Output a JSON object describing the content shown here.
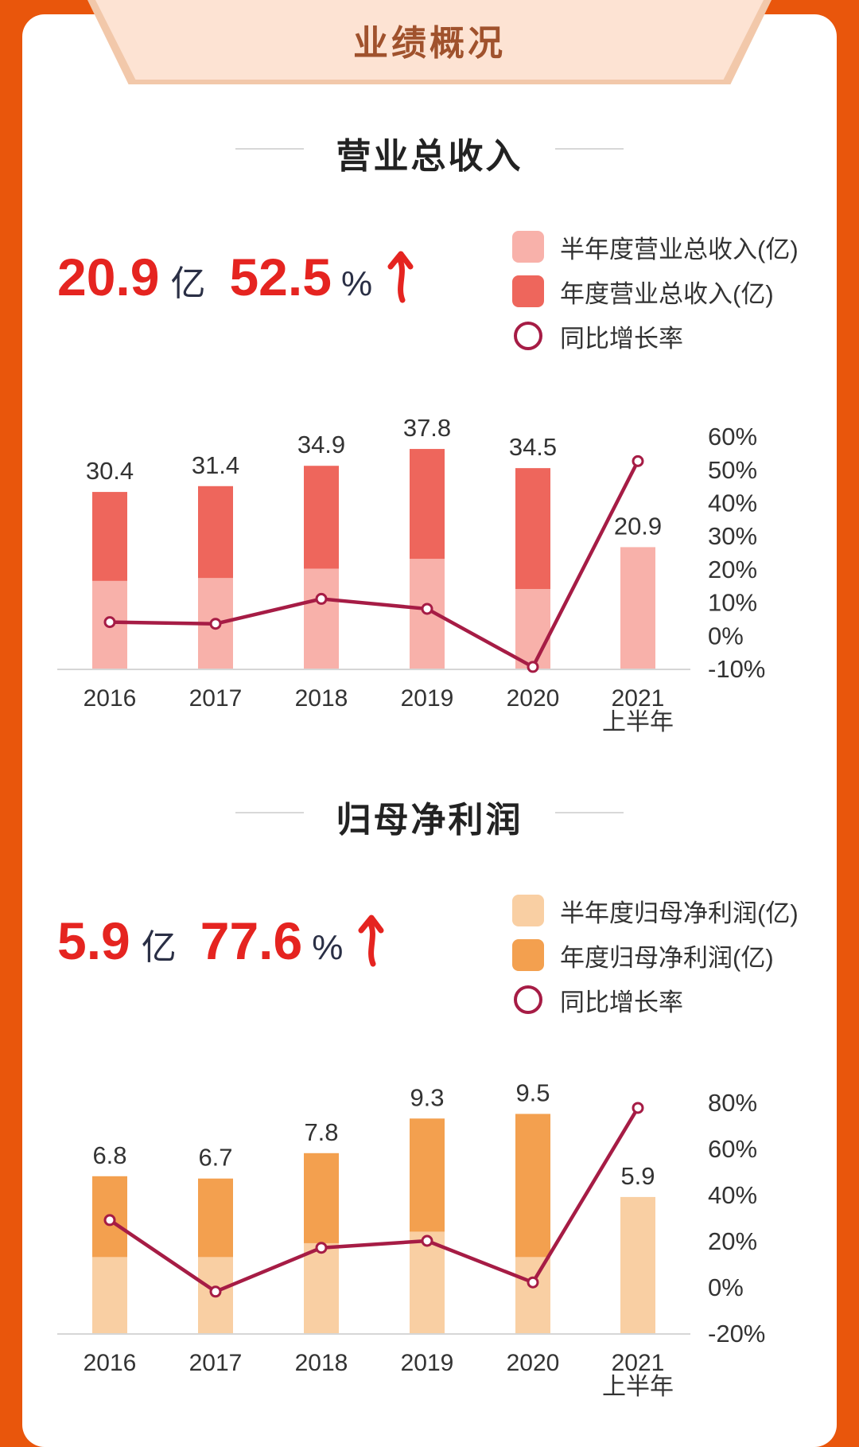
{
  "header": {
    "tab_title": "业绩概况"
  },
  "sections": [
    {
      "title": "营业总收入",
      "kpi": {
        "value": "20.9",
        "unit": "亿",
        "growth": "52.5",
        "growth_unit": "%"
      },
      "legend": {
        "half": "半年度营业总收入(亿)",
        "annual": "年度营业总收入(亿)",
        "yoy": "同比增长率"
      },
      "colors": {
        "half": "#f8b1aa",
        "annual": "#ee665c",
        "line": "#a61c45"
      }
    },
    {
      "title": "归母净利润",
      "kpi": {
        "value": "5.9",
        "unit": "亿",
        "growth": "77.6",
        "growth_unit": "%"
      },
      "legend": {
        "half": "半年度归母净利润(亿)",
        "annual": "年度归母净利润(亿)",
        "yoy": "同比增长率"
      },
      "colors": {
        "half": "#f9cfa3",
        "annual": "#f3a04f",
        "line": "#a61c45"
      }
    }
  ],
  "chart_data": [
    {
      "type": "bar",
      "categories": [
        "2016",
        "2017",
        "2018",
        "2019",
        "2020",
        "2021\n上半年"
      ],
      "series": [
        {
          "name": "半年度营业总收入(亿)",
          "values": [
            15.1,
            15.6,
            17.2,
            18.9,
            13.7,
            20.9
          ]
        },
        {
          "name": "年度营业总收入(亿)",
          "values": [
            30.4,
            31.4,
            34.9,
            37.8,
            34.5,
            null
          ]
        },
        {
          "name": "同比增长率",
          "values": [
            4,
            3.5,
            11,
            8,
            -9.5,
            52.5
          ],
          "axis": "right",
          "type": "line"
        }
      ],
      "bar_labels": [
        "30.4",
        "31.4",
        "34.9",
        "37.8",
        "34.5",
        "20.9"
      ],
      "ylim": [
        0,
        38
      ],
      "y2lim": [
        -10,
        60
      ],
      "y2ticks": [
        "60%",
        "50%",
        "40%",
        "30%",
        "20%",
        "10%",
        "0%",
        "-10%"
      ]
    },
    {
      "type": "bar",
      "categories": [
        "2016",
        "2017",
        "2018",
        "2019",
        "2020",
        "2021\n上半年"
      ],
      "series": [
        {
          "name": "半年度归母净利润(亿)",
          "values": [
            3.3,
            3.3,
            3.9,
            4.4,
            3.3,
            5.9
          ]
        },
        {
          "name": "年度归母净利润(亿)",
          "values": [
            6.8,
            6.7,
            7.8,
            9.3,
            9.5,
            null
          ]
        },
        {
          "name": "同比增长率",
          "values": [
            29,
            -2,
            17,
            20,
            2,
            77.6
          ],
          "axis": "right",
          "type": "line"
        }
      ],
      "bar_labels": [
        "6.8",
        "6.7",
        "7.8",
        "9.3",
        "9.5",
        "5.9"
      ],
      "ylim": [
        0,
        9.5
      ],
      "y2lim": [
        -20,
        80
      ],
      "y2ticks": [
        "80%",
        "60%",
        "40%",
        "20%",
        "0%",
        "-20%"
      ]
    }
  ]
}
